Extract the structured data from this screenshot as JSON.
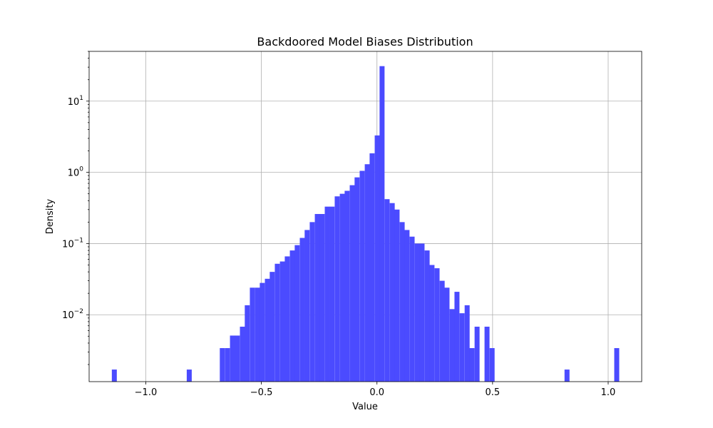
{
  "chart_data": {
    "type": "bar",
    "title": "Backdoored Model Biases Distribution",
    "xlabel": "Value",
    "ylabel": "Density",
    "x_scale": "linear",
    "y_scale": "log",
    "xlim": [
      -1.245,
      1.145
    ],
    "ylim": [
      0.00115,
      50
    ],
    "grid": true,
    "bar_color": "#4b4bff",
    "bin_width": 0.0216,
    "xticks": [
      {
        "value": -1.0,
        "label": "−1.0"
      },
      {
        "value": -0.5,
        "label": "−0.5"
      },
      {
        "value": 0.0,
        "label": "0.0"
      },
      {
        "value": 0.5,
        "label": "0.5"
      },
      {
        "value": 1.0,
        "label": "1.0"
      }
    ],
    "yticks": [
      {
        "value": 0.01,
        "base": "10",
        "exp": "−2"
      },
      {
        "value": 0.1,
        "base": "10",
        "exp": "−1"
      },
      {
        "value": 1,
        "base": "10",
        "exp": "0"
      },
      {
        "value": 10,
        "base": "10",
        "exp": "1"
      }
    ],
    "bins": [
      {
        "x": -1.136,
        "density": 0.0017
      },
      {
        "x": -0.812,
        "density": 0.0017
      },
      {
        "x": -0.669,
        "density": 0.0034
      },
      {
        "x": -0.647,
        "density": 0.0034
      },
      {
        "x": -0.625,
        "density": 0.0051
      },
      {
        "x": -0.604,
        "density": 0.0051
      },
      {
        "x": -0.582,
        "density": 0.0068
      },
      {
        "x": -0.561,
        "density": 0.0136
      },
      {
        "x": -0.539,
        "density": 0.024
      },
      {
        "x": -0.517,
        "density": 0.024
      },
      {
        "x": -0.496,
        "density": 0.028
      },
      {
        "x": -0.474,
        "density": 0.032
      },
      {
        "x": -0.453,
        "density": 0.04
      },
      {
        "x": -0.431,
        "density": 0.052
      },
      {
        "x": -0.409,
        "density": 0.056
      },
      {
        "x": -0.388,
        "density": 0.066
      },
      {
        "x": -0.366,
        "density": 0.08
      },
      {
        "x": -0.345,
        "density": 0.095
      },
      {
        "x": -0.323,
        "density": 0.12
      },
      {
        "x": -0.302,
        "density": 0.155
      },
      {
        "x": -0.28,
        "density": 0.2
      },
      {
        "x": -0.258,
        "density": 0.26
      },
      {
        "x": -0.237,
        "density": 0.26
      },
      {
        "x": -0.215,
        "density": 0.33
      },
      {
        "x": -0.194,
        "density": 0.33
      },
      {
        "x": -0.172,
        "density": 0.46
      },
      {
        "x": -0.15,
        "density": 0.5
      },
      {
        "x": -0.129,
        "density": 0.55
      },
      {
        "x": -0.107,
        "density": 0.66
      },
      {
        "x": -0.086,
        "density": 0.85
      },
      {
        "x": -0.064,
        "density": 1.05
      },
      {
        "x": -0.042,
        "density": 1.3
      },
      {
        "x": -0.021,
        "density": 1.85
      },
      {
        "x": 0.001,
        "density": 3.3
      },
      {
        "x": 0.022,
        "density": 31.0
      },
      {
        "x": 0.044,
        "density": 0.42
      },
      {
        "x": 0.066,
        "density": 0.37
      },
      {
        "x": 0.087,
        "density": 0.3
      },
      {
        "x": 0.109,
        "density": 0.2
      },
      {
        "x": 0.13,
        "density": 0.155
      },
      {
        "x": 0.152,
        "density": 0.125
      },
      {
        "x": 0.174,
        "density": 0.1
      },
      {
        "x": 0.195,
        "density": 0.1
      },
      {
        "x": 0.217,
        "density": 0.08
      },
      {
        "x": 0.238,
        "density": 0.05
      },
      {
        "x": 0.26,
        "density": 0.045
      },
      {
        "x": 0.282,
        "density": 0.03
      },
      {
        "x": 0.303,
        "density": 0.024
      },
      {
        "x": 0.325,
        "density": 0.012
      },
      {
        "x": 0.346,
        "density": 0.021
      },
      {
        "x": 0.368,
        "density": 0.0105
      },
      {
        "x": 0.39,
        "density": 0.0136
      },
      {
        "x": 0.411,
        "density": 0.0034
      },
      {
        "x": 0.433,
        "density": 0.0068
      },
      {
        "x": 0.476,
        "density": 0.0068
      },
      {
        "x": 0.498,
        "density": 0.0034
      },
      {
        "x": 0.822,
        "density": 0.0017
      },
      {
        "x": 1.037,
        "density": 0.0034
      }
    ]
  }
}
